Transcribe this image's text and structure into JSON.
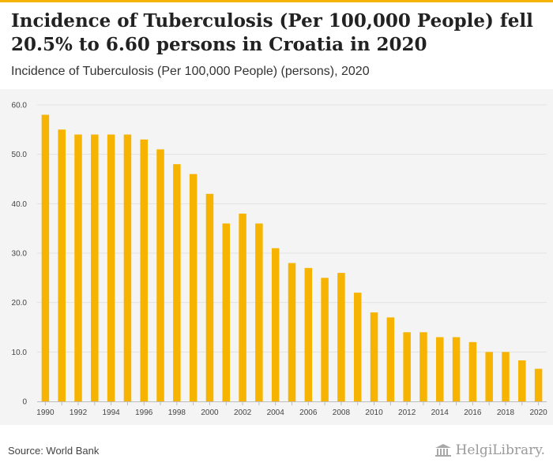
{
  "header": {
    "title": "Incidence of Tuberculosis (Per 100,000 People) fell 20.5% to 6.60 persons in Croatia in 2020",
    "subtitle": "Incidence of Tuberculosis (Per 100,000 People) (persons), 2020"
  },
  "footer": {
    "source": "Source: World Bank",
    "brand": "HelgiLibrary."
  },
  "colors": {
    "accent": "#f6b400",
    "bar": "#f6b400",
    "plot_background": "#f4f4f4",
    "grid": "#e2e2e2"
  },
  "chart_data": {
    "type": "bar",
    "title": "Incidence of Tuberculosis (Per 100,000 People) (persons), 2020",
    "xlabel": "",
    "ylabel": "",
    "categories": [
      "1990",
      "1991",
      "1992",
      "1993",
      "1994",
      "1995",
      "1996",
      "1997",
      "1998",
      "1999",
      "2000",
      "2001",
      "2002",
      "2003",
      "2004",
      "2005",
      "2006",
      "2007",
      "2008",
      "2009",
      "2010",
      "2011",
      "2012",
      "2013",
      "2014",
      "2015",
      "2016",
      "2017",
      "2018",
      "2019",
      "2020"
    ],
    "values": [
      58,
      55,
      54,
      54,
      54,
      54,
      53,
      51,
      48,
      46,
      42,
      36,
      38,
      36,
      31,
      28,
      27,
      25,
      26,
      22,
      18,
      17,
      14,
      14,
      13,
      13,
      12,
      10,
      10,
      8.3,
      6.6
    ],
    "x_tick_labels": [
      "1990",
      "1992",
      "1994",
      "1996",
      "1998",
      "2000",
      "2002",
      "2004",
      "2006",
      "2008",
      "2010",
      "2012",
      "2014",
      "2016",
      "2018",
      "2020"
    ],
    "y_ticks": [
      0,
      10,
      20,
      30,
      40,
      50,
      60
    ],
    "y_tick_labels": [
      "0",
      "10.0",
      "20.0",
      "30.0",
      "40.0",
      "50.0",
      "60.0"
    ],
    "ylim": [
      0,
      60
    ],
    "grid": true,
    "legend": "none"
  }
}
